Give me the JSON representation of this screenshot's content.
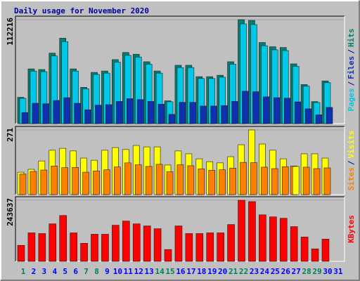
{
  "chart_data": [
    {
      "type": "bar",
      "title": "Daily usage for November 2020",
      "categories": [
        "1",
        "2",
        "3",
        "4",
        "5",
        "6",
        "7",
        "8",
        "9",
        "10",
        "11",
        "12",
        "13",
        "14",
        "15",
        "16",
        "17",
        "18",
        "19",
        "20",
        "21",
        "22",
        "23",
        "24",
        "25",
        "26",
        "27",
        "28",
        "29",
        "30",
        "31"
      ],
      "category_colors": [
        "#00805c",
        "#0000ff",
        "#0000ff",
        "#0000ff",
        "#0000ff",
        "#0000ff",
        "#00805c",
        "#00805c",
        "#0000ff",
        "#0000ff",
        "#0000ff",
        "#0000ff",
        "#0000ff",
        "#00805c",
        "#00805c",
        "#0000ff",
        "#0000ff",
        "#0000ff",
        "#0000ff",
        "#0000ff",
        "#00805c",
        "#00805c",
        "#0000ff",
        "#0000ff",
        "#0000ff",
        "#0000ff",
        "#0000ff",
        "#00805c",
        "#00805c",
        "#0000ff",
        "#0000ff"
      ],
      "legend_separator": "/",
      "series": [
        {
          "name": "Pages",
          "color": "#00c8e8",
          "values": [
            27300,
            56700,
            56100,
            73000,
            88500,
            56700,
            37600,
            53100,
            54500,
            66300,
            73700,
            71900,
            64100,
            54500,
            23600,
            60500,
            60500,
            48700,
            48700,
            50100,
            64100,
            107700,
            106900,
            84100,
            79700,
            78900,
            61900,
            40500,
            22800,
            44300,
            null
          ]
        },
        {
          "name": "Files",
          "color": "#1030b0",
          "values": [
            12000,
            22000,
            21500,
            25000,
            28000,
            22000,
            15000,
            20000,
            20500,
            24000,
            27000,
            26000,
            24000,
            21000,
            10000,
            23000,
            23000,
            19000,
            19000,
            19500,
            24000,
            35000,
            34500,
            29000,
            28000,
            27500,
            23500,
            16000,
            9500,
            17500,
            null
          ]
        },
        {
          "name": "Hits",
          "color": "#008070",
          "values": [
            28400,
            59100,
            58400,
            76100,
            92200,
            59100,
            39200,
            55300,
            56800,
            69100,
            76800,
            74900,
            66800,
            56800,
            24600,
            63000,
            63000,
            50700,
            50700,
            52200,
            66800,
            112216,
            111400,
            87600,
            83000,
            82200,
            64500,
            42200,
            23800,
            46100,
            null
          ]
        }
      ],
      "ylim": [
        0,
        112216
      ],
      "yticks": [
        112216
      ]
    },
    {
      "type": "bar",
      "legend_separator": "/",
      "series": [
        {
          "name": "Sites",
          "color": "#ff8000",
          "values": [
            86,
            97,
            103,
            120,
            113,
            114,
            94,
            99,
            104,
            116,
            133,
            125,
            118,
            127,
            96,
            125,
            121,
            108,
            102,
            104,
            111,
            135,
            134,
            115,
            109,
            117,
            120,
            115,
            109,
            112,
            null
          ]
        },
        {
          "name": "Visits",
          "color": "#ffff00",
          "values": [
            94,
            106,
            141,
            186,
            194,
            183,
            153,
            144,
            186,
            197,
            189,
            206,
            200,
            200,
            124,
            183,
            171,
            150,
            138,
            133,
            159,
            209,
            271,
            212,
            186,
            150,
            118,
            171,
            171,
            153,
            null
          ]
        }
      ],
      "ylim": [
        0,
        271
      ],
      "yticks": [
        271
      ]
    },
    {
      "type": "bar",
      "series": [
        {
          "name": "KBytes",
          "color": "#ff0000",
          "values": [
            63700,
            113500,
            110800,
            149500,
            182800,
            113500,
            72000,
            108000,
            108000,
            144000,
            160600,
            149500,
            141200,
            130100,
            47100,
            141200,
            110800,
            110800,
            113500,
            113500,
            146800,
            243637,
            238100,
            185500,
            177200,
            171700,
            138400,
            96900,
            49800,
            88600,
            null
          ]
        }
      ],
      "ylim": [
        0,
        243637
      ],
      "yticks": [
        243637
      ]
    }
  ]
}
